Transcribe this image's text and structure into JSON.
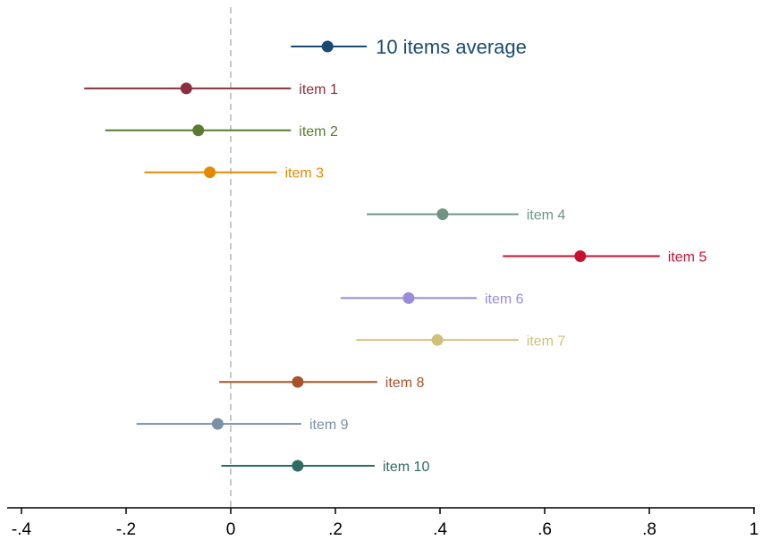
{
  "chart_data": {
    "type": "scatter",
    "subtype": "coefficient-plot",
    "title": "",
    "xlabel": "",
    "ylabel": "",
    "xlim": [
      -0.42,
      1.0
    ],
    "x_ticks": [
      -0.4,
      -0.2,
      0,
      0.2,
      0.4,
      0.6,
      0.8,
      1
    ],
    "x_tick_labels": [
      "-.4",
      "-.2",
      "0",
      ".2",
      ".4",
      ".6",
      ".8",
      "1"
    ],
    "reference_line": {
      "x": 0,
      "style": "dashed",
      "color": "#c8c8c8"
    },
    "grid": false,
    "legend": "none",
    "series": [
      {
        "label": "10 items average",
        "estimate": 0.185,
        "ci_low": 0.115,
        "ci_high": 0.26,
        "color": "#1a4a72",
        "emphasis": true
      },
      {
        "label": "item 1",
        "estimate": -0.085,
        "ci_low": -0.28,
        "ci_high": 0.115,
        "color": "#8b2f3c"
      },
      {
        "label": "item 2",
        "estimate": -0.062,
        "ci_low": -0.24,
        "ci_high": 0.115,
        "color": "#5a7a2e"
      },
      {
        "label": "item 3",
        "estimate": -0.04,
        "ci_low": -0.165,
        "ci_high": 0.088,
        "color": "#e58a00"
      },
      {
        "label": "item 4",
        "estimate": 0.405,
        "ci_low": 0.26,
        "ci_high": 0.55,
        "color": "#6f9484"
      },
      {
        "label": "item 5",
        "estimate": 0.668,
        "ci_low": 0.52,
        "ci_high": 0.82,
        "color": "#c8102e"
      },
      {
        "label": "item 6",
        "estimate": 0.34,
        "ci_low": 0.21,
        "ci_high": 0.47,
        "color": "#9a8cd8"
      },
      {
        "label": "item 7",
        "estimate": 0.395,
        "ci_low": 0.24,
        "ci_high": 0.55,
        "color": "#cfc07a"
      },
      {
        "label": "item 8",
        "estimate": 0.128,
        "ci_low": -0.022,
        "ci_high": 0.28,
        "color": "#a8532a"
      },
      {
        "label": "item 9",
        "estimate": -0.025,
        "ci_low": -0.18,
        "ci_high": 0.135,
        "color": "#7a90a8"
      },
      {
        "label": "item 10",
        "estimate": 0.128,
        "ci_low": -0.018,
        "ci_high": 0.275,
        "color": "#2e6b62"
      }
    ]
  }
}
